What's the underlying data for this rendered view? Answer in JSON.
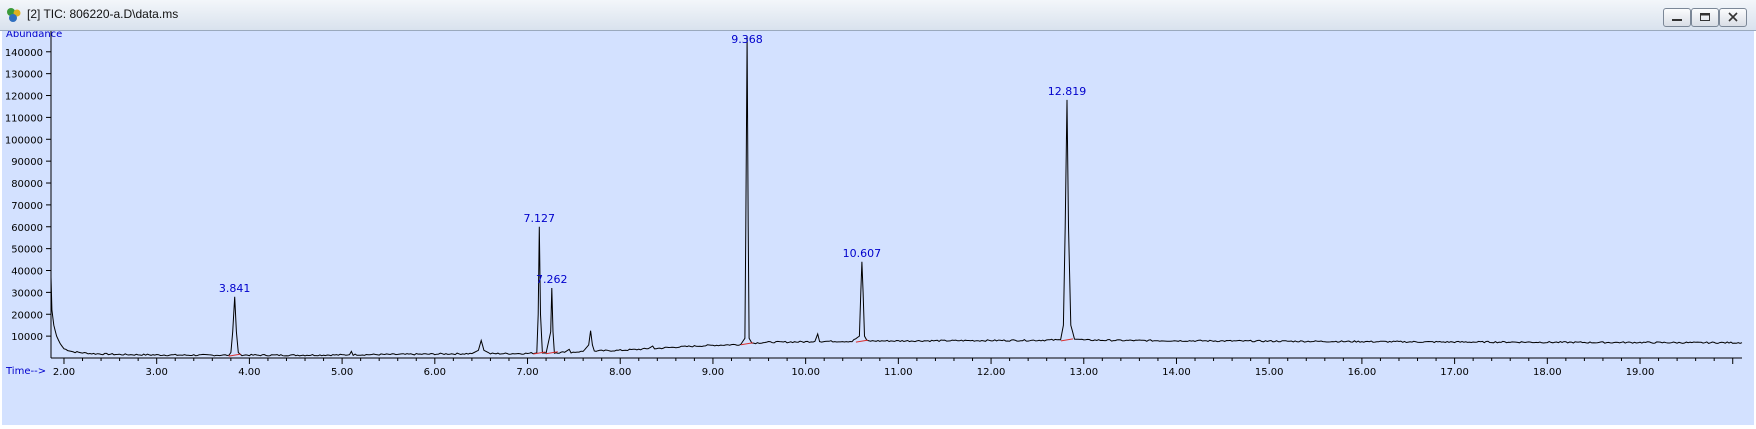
{
  "window": {
    "title": "[2] TIC: 806220-a.D\\data.ms",
    "controls": [
      "minimize-icon",
      "maximize-icon",
      "close-icon"
    ]
  },
  "chart_data": {
    "type": "line",
    "ylabel": "Abundance",
    "xlabel": "Time-->",
    "xlim": [
      1.86,
      20.1
    ],
    "ylim": [
      0,
      149500
    ],
    "x_ticks": [
      "2.00",
      "3.00",
      "4.00",
      "5.00",
      "6.00",
      "7.00",
      "8.00",
      "9.00",
      "10.00",
      "11.00",
      "12.00",
      "13.00",
      "14.00",
      "15.00",
      "16.00",
      "17.00",
      "18.00",
      "19.00"
    ],
    "y_ticks": [
      "10000",
      "20000",
      "30000",
      "40000",
      "50000",
      "60000",
      "70000",
      "80000",
      "90000",
      "100000",
      "110000",
      "120000",
      "130000",
      "140000"
    ],
    "grid": false,
    "colors": {
      "background": "#d3e1ff",
      "trace": "#000000",
      "labels": "#0000cc",
      "baseline": "#d93030",
      "axis_text": "#000000"
    },
    "peak_labels": [
      {
        "x": 3.841,
        "label": "3.841"
      },
      {
        "x": 7.127,
        "label": "7.127"
      },
      {
        "x": 7.262,
        "label": "7.262"
      },
      {
        "x": 9.368,
        "label": "9.368"
      },
      {
        "x": 10.607,
        "label": "10.607"
      },
      {
        "x": 12.819,
        "label": "12.819"
      }
    ],
    "series": [
      {
        "points": [
          [
            1.86,
            37000
          ],
          [
            1.87,
            22000
          ],
          [
            1.89,
            15000
          ],
          [
            1.92,
            10000
          ],
          [
            1.96,
            6500
          ],
          [
            2.0,
            4200
          ],
          [
            2.1,
            2800
          ],
          [
            2.3,
            2000
          ],
          [
            2.6,
            1600
          ],
          [
            3.0,
            1400
          ],
          [
            3.5,
            1300
          ],
          [
            3.78,
            1300
          ],
          [
            3.8,
            2500
          ],
          [
            3.82,
            12000
          ],
          [
            3.841,
            28000
          ],
          [
            3.86,
            12000
          ],
          [
            3.88,
            2500
          ],
          [
            3.9,
            1400
          ],
          [
            4.1,
            1300
          ],
          [
            4.5,
            1300
          ],
          [
            5.0,
            1400
          ],
          [
            5.08,
            1500
          ],
          [
            5.1,
            3000
          ],
          [
            5.12,
            1500
          ],
          [
            5.5,
            1600
          ],
          [
            6.0,
            1800
          ],
          [
            6.4,
            2000
          ],
          [
            6.47,
            3500
          ],
          [
            6.5,
            8000
          ],
          [
            6.53,
            3500
          ],
          [
            6.6,
            2000
          ],
          [
            6.8,
            2000
          ],
          [
            7.0,
            2100
          ],
          [
            7.1,
            2300
          ],
          [
            7.115,
            20000
          ],
          [
            7.127,
            60000
          ],
          [
            7.14,
            20000
          ],
          [
            7.16,
            2300
          ],
          [
            7.2,
            2300
          ],
          [
            7.25,
            12000
          ],
          [
            7.262,
            32000
          ],
          [
            7.275,
            12000
          ],
          [
            7.29,
            2400
          ],
          [
            7.4,
            2600
          ],
          [
            7.45,
            4000
          ],
          [
            7.47,
            2600
          ],
          [
            7.6,
            3000
          ],
          [
            7.66,
            6000
          ],
          [
            7.68,
            12500
          ],
          [
            7.7,
            6000
          ],
          [
            7.72,
            3200
          ],
          [
            8.0,
            3500
          ],
          [
            8.3,
            4200
          ],
          [
            8.35,
            5500
          ],
          [
            8.37,
            4300
          ],
          [
            8.6,
            5000
          ],
          [
            9.0,
            5800
          ],
          [
            9.3,
            6200
          ],
          [
            9.345,
            9000
          ],
          [
            9.355,
            60000
          ],
          [
            9.368,
            147000
          ],
          [
            9.38,
            60000
          ],
          [
            9.39,
            9000
          ],
          [
            9.42,
            6800
          ],
          [
            9.6,
            7200
          ],
          [
            10.0,
            7400
          ],
          [
            10.1,
            7600
          ],
          [
            10.13,
            11000
          ],
          [
            10.15,
            7600
          ],
          [
            10.5,
            7600
          ],
          [
            10.58,
            10000
          ],
          [
            10.595,
            30000
          ],
          [
            10.607,
            44000
          ],
          [
            10.62,
            30000
          ],
          [
            10.635,
            10000
          ],
          [
            10.66,
            7800
          ],
          [
            11.0,
            7800
          ],
          [
            11.5,
            7900
          ],
          [
            12.0,
            8000
          ],
          [
            12.5,
            8100
          ],
          [
            12.75,
            8300
          ],
          [
            12.78,
            15000
          ],
          [
            12.8,
            60000
          ],
          [
            12.819,
            118000
          ],
          [
            12.835,
            60000
          ],
          [
            12.86,
            15000
          ],
          [
            12.9,
            9000
          ],
          [
            13.0,
            8200
          ],
          [
            13.5,
            8000
          ],
          [
            14.0,
            7900
          ],
          [
            14.5,
            7800
          ],
          [
            15.0,
            7700
          ],
          [
            15.5,
            7600
          ],
          [
            16.0,
            7500
          ],
          [
            16.5,
            7400
          ],
          [
            17.0,
            7300
          ],
          [
            17.5,
            7300
          ],
          [
            18.0,
            7200
          ],
          [
            18.5,
            7100
          ],
          [
            19.0,
            7100
          ],
          [
            19.5,
            7000
          ],
          [
            20.0,
            7000
          ],
          [
            20.1,
            7000
          ]
        ]
      }
    ],
    "baseline_markers": [
      [
        3.841,
        1300
      ],
      [
        7.127,
        2300
      ],
      [
        7.262,
        2400
      ],
      [
        9.368,
        6500
      ],
      [
        10.607,
        7700
      ],
      [
        12.819,
        8300
      ]
    ]
  }
}
